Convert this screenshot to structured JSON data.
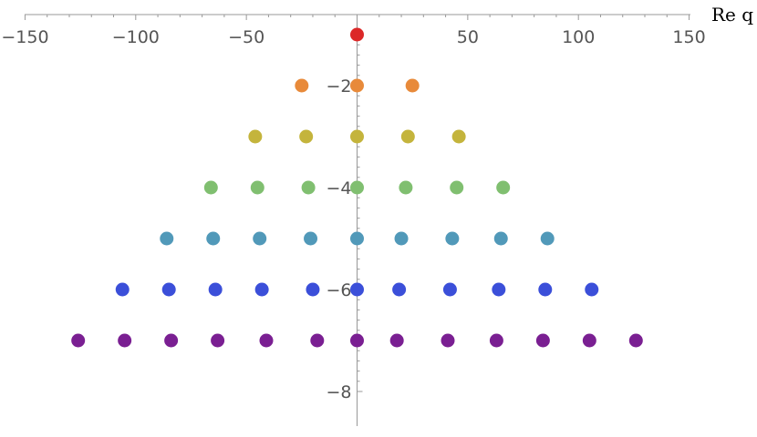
{
  "chart_data": {
    "type": "scatter",
    "title": "",
    "xlabel": "Re q",
    "ylabel": "",
    "xlim": [
      -150,
      150
    ],
    "ylim": [
      -8,
      -0.5
    ],
    "x_ticks": [
      -150,
      -100,
      -50,
      50,
      100,
      150
    ],
    "x_tick_labels": [
      "−150",
      "−100",
      "−50",
      "50",
      "100",
      "150"
    ],
    "y_ticks": [
      -2,
      -4,
      -6,
      -8
    ],
    "y_tick_labels": [
      "−2",
      "−4",
      "−6",
      "−8"
    ],
    "grid": false,
    "legend": "none",
    "series": [
      {
        "color": "#dc2828",
        "y": -1,
        "x": [
          0
        ]
      },
      {
        "color": "#e88a3a",
        "y": -2,
        "x": [
          -25,
          0,
          25
        ]
      },
      {
        "color": "#c4b43c",
        "y": -3,
        "x": [
          -46,
          -23,
          0,
          23,
          46
        ]
      },
      {
        "color": "#80bf70",
        "y": -4,
        "x": [
          -66,
          -45,
          -22,
          0,
          22,
          45,
          66
        ]
      },
      {
        "color": "#5199b9",
        "y": -5,
        "x": [
          -86,
          -65,
          -44,
          -21,
          0,
          20,
          43,
          65,
          86
        ]
      },
      {
        "color": "#3b4fd9",
        "y": -6,
        "x": [
          -106,
          -85,
          -64,
          -43,
          -20,
          0,
          19,
          42,
          64,
          85,
          106
        ]
      },
      {
        "color": "#7a1f92",
        "y": -7,
        "x": [
          -126,
          -105,
          -84,
          -63,
          -41,
          -18,
          0,
          18,
          41,
          63,
          84,
          105,
          126
        ]
      }
    ]
  }
}
